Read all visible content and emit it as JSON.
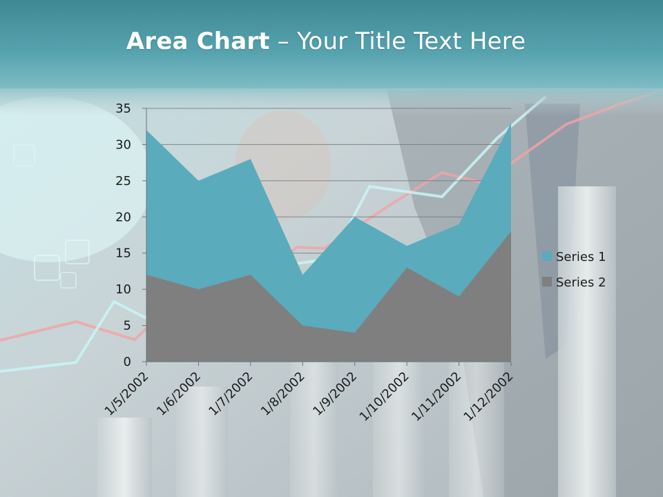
{
  "slide": {
    "title_bold": "Area Chart",
    "title_sep": " – ",
    "title_rest": "Your Title Text Here"
  },
  "colors": {
    "series1": "#5aabbb",
    "series2": "#7f7f7f",
    "header": "#4f9fab",
    "gridline": "#6a7478"
  },
  "chart_data": {
    "type": "area",
    "categories": [
      "1/5/2002",
      "1/6/2002",
      "1/7/2002",
      "1/8/2002",
      "1/9/2002",
      "1/10/2002",
      "1/11/2002",
      "1/12/2002"
    ],
    "series": [
      {
        "name": "Series 1",
        "values": [
          32,
          25,
          28,
          12,
          20,
          16,
          19,
          33
        ]
      },
      {
        "name": "Series 2",
        "values": [
          12,
          10,
          12,
          5,
          4,
          13,
          9,
          18
        ]
      }
    ],
    "ylim": [
      0,
      35
    ],
    "yticks": [
      "0",
      "5",
      "10",
      "15",
      "20",
      "25",
      "30",
      "35"
    ],
    "ytick_values": [
      0,
      5,
      10,
      15,
      20,
      25,
      30,
      35
    ],
    "grid": true,
    "legend": "right",
    "xlabel": "",
    "ylabel": ""
  }
}
